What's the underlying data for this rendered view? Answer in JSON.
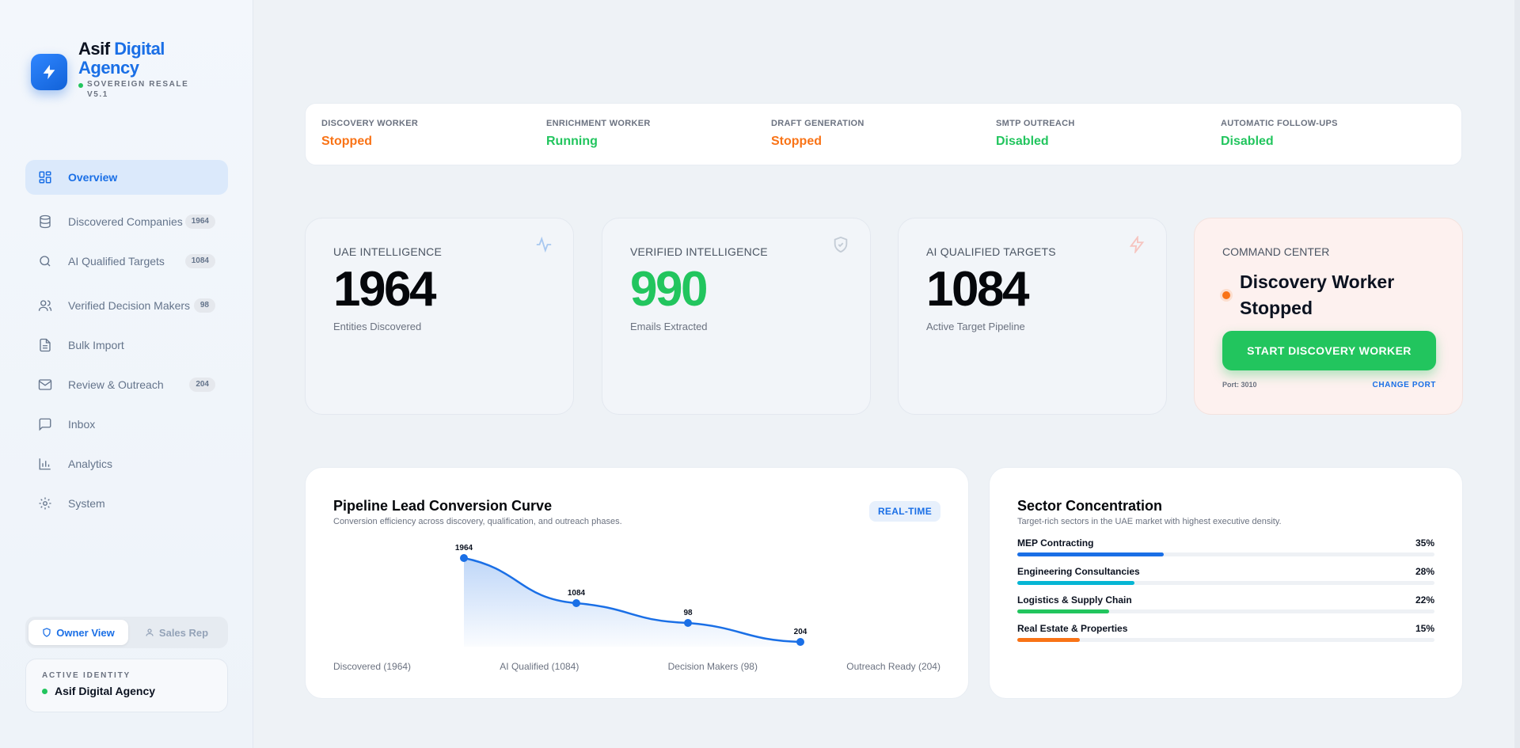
{
  "brand": {
    "title_part1": "Asif",
    "title_part2": "Digital",
    "title_line2": "Agency",
    "subtitle": "SOVEREIGN RESALE V5.1"
  },
  "sidebar": {
    "items": [
      {
        "label": "Overview",
        "icon": "layout-grid-icon",
        "badge": null,
        "active": true
      },
      {
        "label": "Discovered Companies",
        "icon": "database-icon",
        "badge": "1964"
      },
      {
        "label": "AI Qualified Targets",
        "icon": "search-icon",
        "badge": "1084"
      },
      {
        "label": "Verified Decision Makers",
        "icon": "users-icon",
        "badge": "98"
      },
      {
        "label": "Bulk Import",
        "icon": "file-icon",
        "badge": null
      },
      {
        "label": "Review & Outreach",
        "icon": "mail-icon",
        "badge": "204"
      },
      {
        "label": "Inbox",
        "icon": "message-icon",
        "badge": null
      },
      {
        "label": "Analytics",
        "icon": "bar-chart-icon",
        "badge": null
      },
      {
        "label": "System",
        "icon": "gear-icon",
        "badge": null
      }
    ]
  },
  "view_toggle": {
    "owner_label": "Owner View",
    "sales_label": "Sales Rep"
  },
  "identity": {
    "label": "ACTIVE IDENTITY",
    "name": "Asif Digital Agency"
  },
  "workers": [
    {
      "label": "DISCOVERY WORKER",
      "status": "Stopped",
      "color": "#f97316"
    },
    {
      "label": "ENRICHMENT WORKER",
      "status": "Running",
      "color": "#22c55e"
    },
    {
      "label": "DRAFT GENERATION",
      "status": "Stopped",
      "color": "#f97316"
    },
    {
      "label": "SMTP OUTREACH",
      "status": "Disabled",
      "color": "#22c55e"
    },
    {
      "label": "AUTOMATIC FOLLOW-UPS",
      "status": "Disabled",
      "color": "#22c55e"
    }
  ],
  "stats": [
    {
      "label": "UAE INTELLIGENCE",
      "value": "1964",
      "sub": "Entities Discovered",
      "icon": "activity-icon",
      "value_color": "#05070b"
    },
    {
      "label": "VERIFIED INTELLIGENCE",
      "value": "990",
      "sub": "Emails Extracted",
      "icon": "shield-check-icon",
      "value_color": "#22c55e"
    },
    {
      "label": "AI QUALIFIED TARGETS",
      "value": "1084",
      "sub": "Active Target Pipeline",
      "icon": "zap-icon",
      "value_color": "#05070b"
    }
  ],
  "command_center": {
    "label": "COMMAND CENTER",
    "status_line1": "Discovery Worker",
    "status_line2": "Stopped",
    "button_label": "START DISCOVERY WORKER",
    "port": "Port: 3010",
    "change_port": "CHANGE PORT"
  },
  "pipeline": {
    "title": "Pipeline Lead Conversion Curve",
    "subtitle": "Conversion efficiency across discovery, qualification, and outreach phases.",
    "badge": "REAL-TIME",
    "stage_labels": [
      "Discovered (1964)",
      "AI Qualified (1084)",
      "Decision Makers (98)",
      "Outreach Ready (204)"
    ]
  },
  "chart_data": {
    "type": "area",
    "categories": [
      "Discovered",
      "AI Qualified",
      "Decision Makers",
      "Outreach Ready"
    ],
    "values": [
      1964,
      1084,
      98,
      204
    ],
    "data_labels": [
      "1964",
      "1084",
      "98",
      "204"
    ],
    "title": "Pipeline Lead Conversion Curve",
    "series_color": "#1a6fe6"
  },
  "sectors": {
    "title": "Sector Concentration",
    "subtitle": "Target-rich sectors in the UAE market with highest executive density.",
    "items": [
      {
        "name": "MEP Contracting",
        "pct_label": "35%",
        "pct": 35,
        "color": "#1a6fe6"
      },
      {
        "name": "Engineering Consultancies",
        "pct_label": "28%",
        "pct": 28,
        "color": "#06b6d4"
      },
      {
        "name": "Logistics & Supply Chain",
        "pct_label": "22%",
        "pct": 22,
        "color": "#22c55e"
      },
      {
        "name": "Real Estate & Properties",
        "pct_label": "15%",
        "pct": 15,
        "color": "#f97316"
      }
    ]
  }
}
